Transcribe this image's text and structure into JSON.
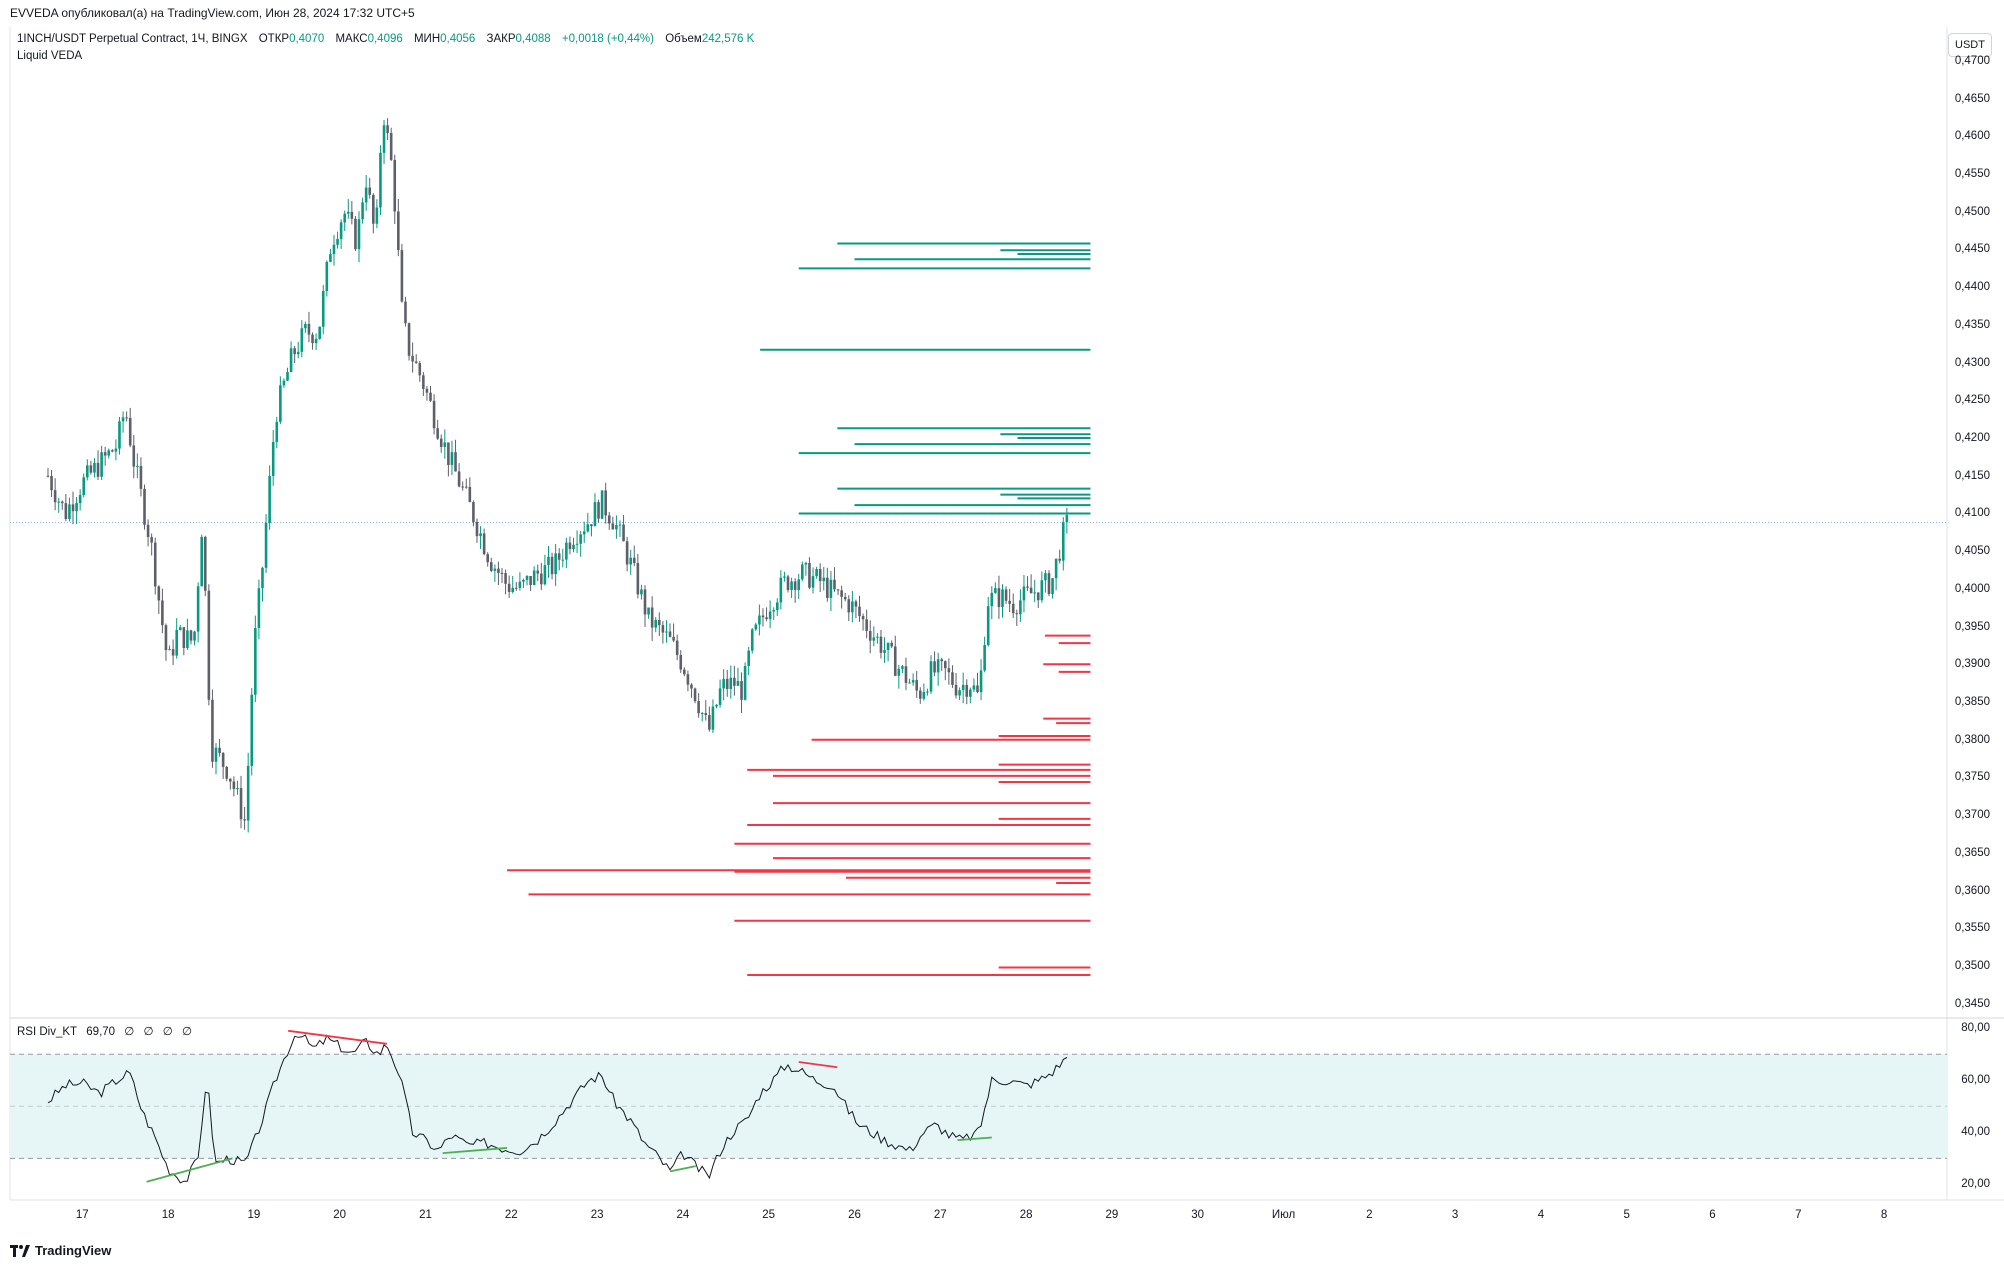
{
  "publisher": "EVVEDA опубликовал(а) на TradingView.com, Июн 28, 2024 17:32 UTC+5",
  "legend": {
    "symbol": "1INCH/USDT Perpetual Contract, 1Ч, BINGX",
    "open_label": "ОТКР",
    "open": "0,4070",
    "high_label": "МАКС",
    "high": "0,4096",
    "low_label": "МИН",
    "low": "0,4056",
    "close_label": "ЗАКР",
    "close": "0,4088",
    "change": "+0,0018 (+0,44%)",
    "volume_label": "Объем",
    "volume": "242,576 K",
    "indicator": "Liquid VEDA"
  },
  "rsi_legend": {
    "name": "RSI Div_KT",
    "value": "69,70",
    "extras": [
      "∅",
      "∅",
      "∅",
      "∅"
    ]
  },
  "currency_button": "USDT",
  "branding": "TradingView",
  "colors": {
    "up": "#089981",
    "down": "#5d606b",
    "long_liq": "#089981",
    "short_liq": "#f23645",
    "rsi_band": "#e6f6f6"
  },
  "chart_data": {
    "type": "candlestick",
    "symbol": "1INCH/USDT",
    "timeframe": "1Ч",
    "price_axis": {
      "labels": [
        "0,4700",
        "0,4650",
        "0,4600",
        "0,4550",
        "0,4500",
        "0,4450",
        "0,4400",
        "0,4350",
        "0,4300",
        "0,4250",
        "0,4200",
        "0,4150",
        "0,4100",
        "0,4050",
        "0,4000",
        "0,3950",
        "0,3900",
        "0,3850",
        "0,3800",
        "0,3750",
        "0,3700",
        "0,3650",
        "0,3600",
        "0,3550",
        "0,3500",
        "0,3450"
      ],
      "values": [
        0.47,
        0.465,
        0.46,
        0.455,
        0.45,
        0.445,
        0.44,
        0.435,
        0.43,
        0.425,
        0.42,
        0.415,
        0.41,
        0.405,
        0.4,
        0.395,
        0.39,
        0.385,
        0.38,
        0.375,
        0.37,
        0.365,
        0.36,
        0.355,
        0.35,
        0.345
      ],
      "range": [
        0.3435,
        0.4745
      ]
    },
    "time_axis": [
      "17",
      "18",
      "19",
      "20",
      "21",
      "22",
      "23",
      "24",
      "25",
      "26",
      "27",
      "28",
      "29",
      "30",
      "Июл",
      "2",
      "3",
      "4",
      "5",
      "6",
      "7",
      "8"
    ],
    "last_price": 0.4088,
    "price_path": [
      [
        16.6,
        0.415
      ],
      [
        16.8,
        0.41
      ],
      [
        17.0,
        0.414
      ],
      [
        17.2,
        0.4165
      ],
      [
        17.4,
        0.419
      ],
      [
        17.5,
        0.424
      ],
      [
        17.6,
        0.417
      ],
      [
        17.8,
        0.406
      ],
      [
        18.0,
        0.39
      ],
      [
        18.1,
        0.394
      ],
      [
        18.3,
        0.393
      ],
      [
        18.4,
        0.4095
      ],
      [
        18.5,
        0.379
      ],
      [
        18.7,
        0.376
      ],
      [
        18.9,
        0.369
      ],
      [
        19.0,
        0.392
      ],
      [
        19.1,
        0.403
      ],
      [
        19.25,
        0.423
      ],
      [
        19.45,
        0.431
      ],
      [
        19.6,
        0.434
      ],
      [
        19.75,
        0.434
      ],
      [
        19.9,
        0.446
      ],
      [
        20.05,
        0.45
      ],
      [
        20.2,
        0.446
      ],
      [
        20.3,
        0.455
      ],
      [
        20.42,
        0.446
      ],
      [
        20.5,
        0.464
      ],
      [
        20.62,
        0.455
      ],
      [
        20.73,
        0.436
      ],
      [
        20.8,
        0.432
      ],
      [
        20.95,
        0.428
      ],
      [
        21.1,
        0.423
      ],
      [
        21.25,
        0.418
      ],
      [
        21.4,
        0.414
      ],
      [
        21.55,
        0.41
      ],
      [
        21.75,
        0.404
      ],
      [
        21.95,
        0.4005
      ],
      [
        22.1,
        0.4
      ],
      [
        22.3,
        0.402
      ],
      [
        22.5,
        0.403
      ],
      [
        22.7,
        0.407
      ],
      [
        22.9,
        0.409
      ],
      [
        23.05,
        0.4115
      ],
      [
        23.2,
        0.409
      ],
      [
        23.4,
        0.403
      ],
      [
        23.6,
        0.396
      ],
      [
        23.85,
        0.393
      ],
      [
        24.0,
        0.39
      ],
      [
        24.15,
        0.386
      ],
      [
        24.3,
        0.381
      ],
      [
        24.45,
        0.387
      ],
      [
        24.6,
        0.3875
      ],
      [
        24.7,
        0.3865
      ],
      [
        24.8,
        0.393
      ],
      [
        25.0,
        0.398
      ],
      [
        25.2,
        0.401
      ],
      [
        25.4,
        0.402
      ],
      [
        25.6,
        0.401
      ],
      [
        25.8,
        0.399
      ],
      [
        25.95,
        0.398
      ],
      [
        26.15,
        0.395
      ],
      [
        26.35,
        0.392
      ],
      [
        26.55,
        0.389
      ],
      [
        26.75,
        0.386
      ],
      [
        26.9,
        0.389
      ],
      [
        27.05,
        0.389
      ],
      [
        27.2,
        0.387
      ],
      [
        27.35,
        0.3875
      ],
      [
        27.45,
        0.3855
      ],
      [
        27.55,
        0.3985
      ],
      [
        27.7,
        0.399
      ],
      [
        27.85,
        0.398
      ],
      [
        28.0,
        0.399
      ],
      [
        28.15,
        0.4
      ],
      [
        28.3,
        0.401
      ],
      [
        28.45,
        0.408
      ],
      [
        28.5,
        0.4088
      ]
    ],
    "liquidation_levels": {
      "long": [
        {
          "price": 0.4458,
          "from": 25.8
        },
        {
          "price": 0.4449,
          "from": 27.7
        },
        {
          "price": 0.4444,
          "from": 27.9
        },
        {
          "price": 0.4437,
          "from": 26.0
        },
        {
          "price": 0.4425,
          "from": 25.35
        },
        {
          "price": 0.4317,
          "from": 24.9
        },
        {
          "price": 0.4213,
          "from": 25.8
        },
        {
          "price": 0.4205,
          "from": 27.7
        },
        {
          "price": 0.42,
          "from": 27.9
        },
        {
          "price": 0.4192,
          "from": 26.0
        },
        {
          "price": 0.418,
          "from": 25.35
        },
        {
          "price": 0.4133,
          "from": 25.8
        },
        {
          "price": 0.4125,
          "from": 27.7
        },
        {
          "price": 0.412,
          "from": 27.9
        },
        {
          "price": 0.4111,
          "from": 26.0
        },
        {
          "price": 0.41,
          "from": 25.35
        }
      ],
      "short": [
        {
          "price": 0.3938,
          "from": 28.22
        },
        {
          "price": 0.3928,
          "from": 28.38
        },
        {
          "price": 0.39,
          "from": 28.2
        },
        {
          "price": 0.389,
          "from": 28.38
        },
        {
          "price": 0.3828,
          "from": 28.2
        },
        {
          "price": 0.3822,
          "from": 28.35
        },
        {
          "price": 0.3805,
          "from": 27.68
        },
        {
          "price": 0.38,
          "from": 25.5
        },
        {
          "price": 0.3767,
          "from": 27.68
        },
        {
          "price": 0.376,
          "from": 24.75
        },
        {
          "price": 0.3752,
          "from": 25.05
        },
        {
          "price": 0.3744,
          "from": 27.68
        },
        {
          "price": 0.3716,
          "from": 25.05
        },
        {
          "price": 0.3695,
          "from": 27.68
        },
        {
          "price": 0.3687,
          "from": 24.75
        },
        {
          "price": 0.3662,
          "from": 24.6
        },
        {
          "price": 0.3643,
          "from": 25.05
        },
        {
          "price": 0.3627,
          "from": 21.95
        },
        {
          "price": 0.3625,
          "from": 24.6
        },
        {
          "price": 0.3617,
          "from": 25.9
        },
        {
          "price": 0.361,
          "from": 28.35
        },
        {
          "price": 0.3595,
          "from": 22.2
        },
        {
          "price": 0.356,
          "from": 24.6
        },
        {
          "price": 0.3498,
          "from": 27.68
        },
        {
          "price": 0.3488,
          "from": 24.75
        }
      ],
      "end": 28.75
    },
    "rsi": {
      "name": "RSI Div_KT",
      "value": 69.7,
      "axis_labels": [
        "80,00",
        "60,00",
        "40,00",
        "20,00"
      ],
      "axis_values": [
        80,
        60,
        40,
        20
      ],
      "bands": {
        "upper": 70,
        "middle": 50,
        "lower": 30
      },
      "range": [
        14,
        82
      ],
      "path": [
        [
          16.6,
          52
        ],
        [
          16.8,
          58
        ],
        [
          17.0,
          59
        ],
        [
          17.2,
          55
        ],
        [
          17.4,
          60
        ],
        [
          17.55,
          63
        ],
        [
          17.7,
          48
        ],
        [
          17.85,
          38
        ],
        [
          18.0,
          26
        ],
        [
          18.2,
          21
        ],
        [
          18.35,
          30
        ],
        [
          18.45,
          62
        ],
        [
          18.55,
          28
        ],
        [
          18.7,
          30
        ],
        [
          18.9,
          28
        ],
        [
          19.0,
          36
        ],
        [
          19.1,
          45
        ],
        [
          19.25,
          60
        ],
        [
          19.4,
          72
        ],
        [
          19.5,
          79
        ],
        [
          19.7,
          72
        ],
        [
          19.85,
          76
        ],
        [
          20.0,
          73
        ],
        [
          20.15,
          70
        ],
        [
          20.3,
          75
        ],
        [
          20.45,
          70
        ],
        [
          20.55,
          74
        ],
        [
          20.7,
          62
        ],
        [
          20.85,
          40
        ],
        [
          21.0,
          37
        ],
        [
          21.15,
          33
        ],
        [
          21.3,
          39
        ],
        [
          21.5,
          35
        ],
        [
          21.7,
          36
        ],
        [
          21.9,
          34
        ],
        [
          22.1,
          33
        ],
        [
          22.3,
          37
        ],
        [
          22.5,
          44
        ],
        [
          22.7,
          52
        ],
        [
          22.9,
          60
        ],
        [
          23.05,
          62
        ],
        [
          23.2,
          52
        ],
        [
          23.4,
          44
        ],
        [
          23.55,
          36
        ],
        [
          23.7,
          31
        ],
        [
          23.85,
          25
        ],
        [
          24.0,
          32
        ],
        [
          24.15,
          27
        ],
        [
          24.3,
          23
        ],
        [
          24.45,
          34
        ],
        [
          24.6,
          41
        ],
        [
          24.75,
          45
        ],
        [
          24.9,
          55
        ],
        [
          25.05,
          60
        ],
        [
          25.2,
          66
        ],
        [
          25.35,
          64
        ],
        [
          25.55,
          60
        ],
        [
          25.75,
          58
        ],
        [
          25.9,
          50
        ],
        [
          26.05,
          43
        ],
        [
          26.2,
          40
        ],
        [
          26.35,
          37
        ],
        [
          26.5,
          35
        ],
        [
          26.65,
          33
        ],
        [
          26.8,
          40
        ],
        [
          26.95,
          43
        ],
        [
          27.1,
          39
        ],
        [
          27.25,
          37
        ],
        [
          27.45,
          40
        ],
        [
          27.6,
          60
        ],
        [
          27.8,
          60
        ],
        [
          28.0,
          58
        ],
        [
          28.15,
          60
        ],
        [
          28.3,
          63
        ],
        [
          28.5,
          69.7
        ]
      ],
      "divergences": [
        {
          "kind": "bullish",
          "from": [
            17.75,
            21
          ],
          "to": [
            18.75,
            30
          ]
        },
        {
          "kind": "bearish",
          "from": [
            19.4,
            79
          ],
          "to": [
            20.55,
            74
          ]
        },
        {
          "kind": "bullish",
          "from": [
            21.2,
            32
          ],
          "to": [
            21.95,
            34
          ]
        },
        {
          "kind": "bullish",
          "from": [
            23.85,
            25
          ],
          "to": [
            24.15,
            27
          ]
        },
        {
          "kind": "bearish",
          "from": [
            25.35,
            67
          ],
          "to": [
            25.8,
            65
          ]
        },
        {
          "kind": "bullish",
          "from": [
            27.2,
            37
          ],
          "to": [
            27.6,
            38
          ]
        }
      ]
    }
  }
}
